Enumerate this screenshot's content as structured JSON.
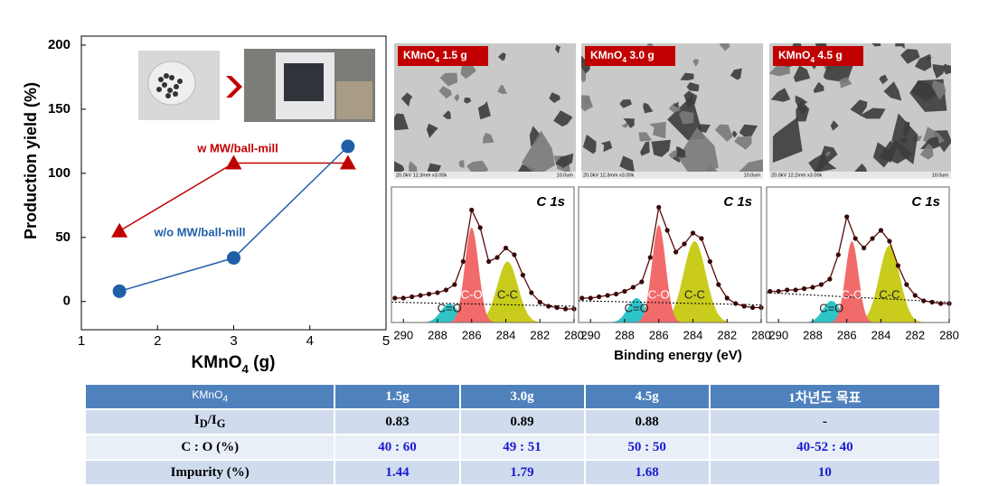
{
  "chart_data": [
    {
      "type": "line",
      "xlabel": [
        "KMnO",
        {
          "sub": "4"
        },
        " (g)"
      ],
      "ylabel": "Production yield (%)",
      "xlim": [
        1,
        5
      ],
      "xticks": [
        1,
        2,
        3,
        4,
        5
      ],
      "ylim": [
        -22,
        207
      ],
      "yticks": [
        0,
        50,
        100,
        150,
        200
      ],
      "series": [
        {
          "name": "w MW/ball-mill",
          "color": "#c00000",
          "marker": "triangle",
          "x": [
            1.5,
            3,
            4.5
          ],
          "values": [
            55,
            108,
            108
          ]
        },
        {
          "name": "w/o MW/ball-mill",
          "color": "#1f5fa8",
          "marker": "circle",
          "x": [
            1.5,
            3,
            4.5
          ],
          "values": [
            8,
            34,
            121
          ]
        }
      ]
    },
    {
      "type": "xps",
      "title": "C 1s",
      "xlim": [
        290.7,
        280
      ],
      "ylim": [
        0,
        100
      ],
      "xticks": [
        290,
        288,
        286,
        284,
        282,
        280
      ],
      "x": [
        290.5,
        290,
        289.5,
        289,
        288.5,
        288,
        287.5,
        287,
        286.5,
        286,
        285.5,
        285,
        284.5,
        284,
        283.5,
        283,
        282.5,
        282,
        281.5,
        281,
        280.5,
        280
      ],
      "values": [
        18,
        18,
        19,
        20,
        21,
        22,
        24,
        28,
        45,
        83,
        70,
        45,
        48,
        55,
        50,
        35,
        22,
        15,
        12,
        11,
        10,
        10
      ],
      "baseline": [
        15,
        12
      ],
      "peaks": [
        {
          "name": "C=O",
          "center": 287.3,
          "height": 14,
          "width": 0.5,
          "color": "#2ec4c8"
        },
        {
          "name": "C-C",
          "center": 283.9,
          "height": 45,
          "width": 0.6,
          "color": "#c9cc1c"
        },
        {
          "name": "C-O",
          "center": 286.0,
          "height": 70,
          "width": 0.4,
          "color": "#f26b6b"
        }
      ]
    },
    {
      "type": "xps",
      "title": "C 1s",
      "xlim": [
        290.7,
        280
      ],
      "ylim": [
        0,
        100
      ],
      "xticks": [
        290,
        288,
        286,
        284,
        282,
        280
      ],
      "x": [
        290.5,
        290,
        289.5,
        289,
        288.5,
        288,
        287.5,
        287,
        286.5,
        286,
        285.5,
        285,
        284.5,
        284,
        283.5,
        283,
        282.5,
        282,
        281.5,
        281,
        280.5,
        280
      ],
      "values": [
        18,
        18,
        19,
        20,
        21,
        23,
        26,
        30,
        48,
        85,
        68,
        52,
        58,
        66,
        62,
        45,
        28,
        18,
        14,
        12,
        11,
        11
      ],
      "baseline": [
        16,
        13
      ],
      "peaks": [
        {
          "name": "C=O",
          "center": 287.3,
          "height": 18,
          "width": 0.5,
          "color": "#2ec4c8"
        },
        {
          "name": "C-C",
          "center": 283.9,
          "height": 60,
          "width": 0.65,
          "color": "#c9cc1c"
        },
        {
          "name": "C-O",
          "center": 286.0,
          "height": 72,
          "width": 0.4,
          "color": "#f26b6b"
        }
      ]
    },
    {
      "type": "xps",
      "title": "C 1s",
      "xlim": [
        290.7,
        280
      ],
      "ylim": [
        0,
        100
      ],
      "xticks": [
        290,
        288,
        286,
        284,
        282,
        280
      ],
      "x": [
        290.5,
        290,
        289.5,
        289,
        288.5,
        288,
        287.5,
        287,
        286.5,
        286,
        285.5,
        285,
        284.5,
        284,
        283.5,
        283,
        282.5,
        282,
        281.5,
        281,
        280.5,
        280
      ],
      "values": [
        23,
        23,
        24,
        24,
        25,
        26,
        28,
        32,
        50,
        78,
        62,
        55,
        62,
        68,
        60,
        42,
        28,
        20,
        16,
        15,
        14,
        14
      ],
      "baseline": [
        22,
        15
      ],
      "peaks": [
        {
          "name": "C=O",
          "center": 286.9,
          "height": 16,
          "width": 0.5,
          "color": "#2ec4c8"
        },
        {
          "name": "C-C",
          "center": 283.5,
          "height": 57,
          "width": 0.6,
          "color": "#c9cc1c"
        },
        {
          "name": "C-O",
          "center": 285.7,
          "height": 60,
          "width": 0.38,
          "color": "#f26b6b"
        }
      ]
    }
  ],
  "xps_xlabel": "Binding  energy  (eV)",
  "images": [
    {
      "label": [
        "KMnO",
        {
          "sub": "4"
        },
        " 1.5 g"
      ],
      "footer": "20.0kV 12.3mm x3.00k",
      "scale": "10.0um"
    },
    {
      "label": [
        "KMnO",
        {
          "sub": "4"
        },
        " 3.0 g"
      ],
      "footer": "20.0kV 12.3mm x3.00k",
      "scale": "10.0um"
    },
    {
      "label": [
        "KMnO",
        {
          "sub": "4"
        },
        " 4.5 g"
      ],
      "footer": "20.0kV 12.2mm x3.00k",
      "scale": "10.0um"
    }
  ],
  "table": {
    "header": [
      [
        "KMnO",
        {
          "sub": "4"
        }
      ],
      [
        "1.5g"
      ],
      [
        "3.0g"
      ],
      [
        "4.5g"
      ],
      [
        "1차년도 목표"
      ]
    ],
    "rows": [
      [
        [
          "I",
          {
            "sub": "D"
          },
          "/I",
          {
            "sub": "G"
          }
        ],
        [
          "0.83"
        ],
        [
          "0.89"
        ],
        [
          "0.88"
        ],
        [
          "-"
        ]
      ],
      [
        [
          "C : O (%)"
        ],
        [
          "40 : 60"
        ],
        [
          "49 : 51"
        ],
        [
          "50 : 50"
        ],
        [
          "40-52 : 40"
        ]
      ],
      [
        [
          "Impurity (%)"
        ],
        [
          "1.44"
        ],
        [
          "1.79"
        ],
        [
          "1.68"
        ],
        [
          "10"
        ]
      ]
    ]
  }
}
